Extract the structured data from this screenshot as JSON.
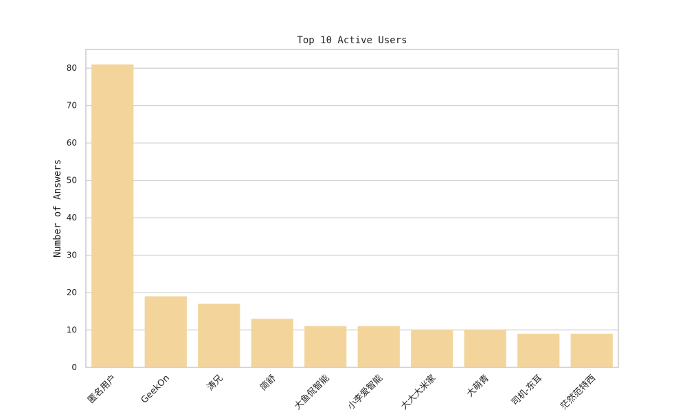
{
  "chart_data": {
    "type": "bar",
    "title": "Top 10 Active Users",
    "xlabel": "",
    "ylabel": "Number of Answers",
    "categories": [
      "匿名用户",
      "GeekOn",
      "涛兄",
      "简舒",
      "大鱼侃智能",
      "小李爱智能",
      "大大大米家",
      "大萌青",
      "司机-东耳",
      "茫然范特西"
    ],
    "values": [
      81,
      19,
      17,
      13,
      11,
      11,
      10,
      10,
      9,
      9
    ],
    "ylim": [
      0,
      85
    ],
    "yticks": [
      0,
      10,
      20,
      30,
      40,
      50,
      60,
      70,
      80
    ],
    "grid": "horizontal",
    "bar_color": "#f3d59c",
    "grid_color": "#cccccc",
    "frame_color": "#cccccc"
  }
}
